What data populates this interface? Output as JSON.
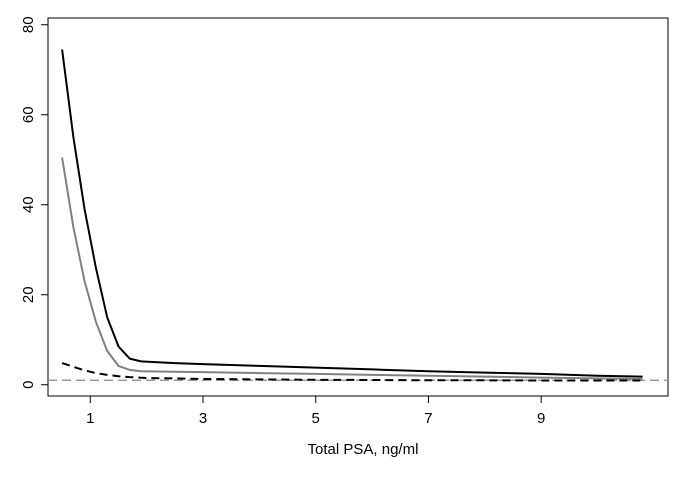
{
  "chart_data": {
    "type": "line",
    "title": "",
    "xlabel": "Total PSA, ng/ml",
    "ylabel": "",
    "xlim": [
      0.25,
      11.25
    ],
    "ylim": [
      -2.5,
      81.5
    ],
    "x_ticks": [
      1,
      3,
      5,
      7,
      9
    ],
    "y_ticks": [
      0,
      20,
      40,
      60,
      80
    ],
    "x_tick_labels": [
      "1",
      "3",
      "5",
      "7",
      "9"
    ],
    "y_tick_labels": [
      "0",
      "20",
      "40",
      "60",
      "80"
    ],
    "grid": false,
    "legend": "none",
    "series": [
      {
        "style": "solid",
        "color": "#000000",
        "x": [
          0.5,
          0.7,
          0.9,
          1.1,
          1.3,
          1.5,
          1.7,
          1.9,
          2.5,
          3,
          4,
          5,
          6,
          7,
          8,
          9,
          10,
          10.8
        ],
        "y": [
          74.5,
          55,
          39,
          26,
          15,
          8.5,
          5.8,
          5.2,
          4.8,
          4.6,
          4.2,
          3.8,
          3.4,
          3.0,
          2.7,
          2.4,
          2.0,
          1.8
        ]
      },
      {
        "style": "solid",
        "color": "#808080",
        "x": [
          0.5,
          0.7,
          0.9,
          1.1,
          1.3,
          1.5,
          1.7,
          1.9,
          2.5,
          3,
          4,
          5,
          6,
          7,
          8,
          9,
          10,
          10.8
        ],
        "y": [
          50.5,
          35,
          23,
          14,
          7.5,
          4.2,
          3.3,
          3.0,
          2.9,
          2.8,
          2.6,
          2.4,
          2.2,
          2.0,
          1.8,
          1.6,
          1.4,
          1.3
        ]
      },
      {
        "style": "dashed",
        "color": "#000000",
        "x": [
          0.5,
          0.7,
          0.9,
          1.1,
          1.3,
          1.5,
          1.7,
          2.0,
          3,
          4,
          5,
          6,
          7,
          8,
          9,
          10,
          10.8
        ],
        "y": [
          4.8,
          4.0,
          3.2,
          2.6,
          2.2,
          1.9,
          1.7,
          1.5,
          1.3,
          1.2,
          1.1,
          1.05,
          1.0,
          1.0,
          0.95,
          0.95,
          0.95
        ]
      }
    ],
    "reference_lines": [
      {
        "orientation": "horizontal",
        "y": 1,
        "style": "dashed",
        "color": "#888888"
      }
    ]
  }
}
